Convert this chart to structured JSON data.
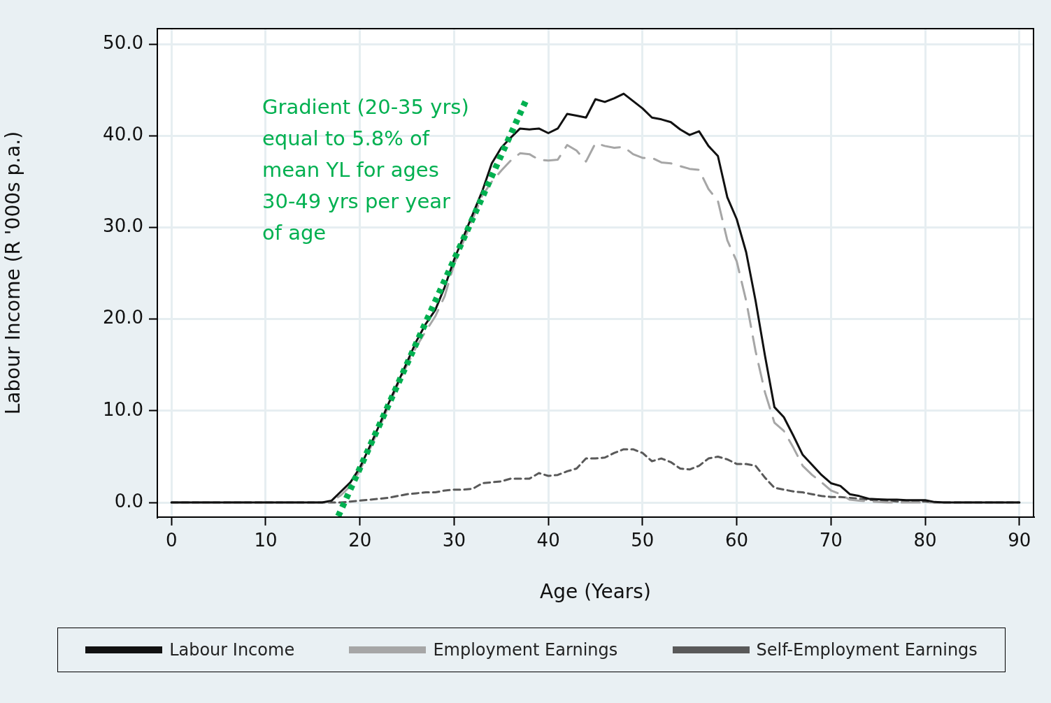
{
  "chart_data": {
    "type": "line",
    "xlabel": "Age (Years)",
    "ylabel": "Labour Income (R '000s p.a.)",
    "x": [
      0,
      1,
      2,
      3,
      4,
      5,
      6,
      7,
      8,
      9,
      10,
      11,
      12,
      13,
      14,
      15,
      16,
      17,
      18,
      19,
      20,
      21,
      22,
      23,
      24,
      25,
      26,
      27,
      28,
      29,
      30,
      31,
      32,
      33,
      34,
      35,
      36,
      37,
      38,
      39,
      40,
      41,
      42,
      43,
      44,
      45,
      46,
      47,
      48,
      49,
      50,
      51,
      52,
      53,
      54,
      55,
      56,
      57,
      58,
      59,
      60,
      61,
      62,
      63,
      64,
      65,
      66,
      67,
      68,
      69,
      70,
      71,
      72,
      73,
      74,
      75,
      76,
      77,
      78,
      79,
      80,
      81,
      82,
      83,
      84,
      85,
      86,
      87,
      88,
      89,
      90
    ],
    "series": [
      {
        "name": "Labour Income",
        "color": "#111111",
        "line_style": "solid",
        "values": [
          0,
          0,
          0,
          0,
          0,
          0,
          0,
          0,
          0,
          0,
          0,
          0,
          0,
          0,
          0,
          0,
          0,
          0.2,
          1.2,
          2.2,
          3.8,
          6,
          8.3,
          10.7,
          13,
          15.3,
          17.6,
          19.5,
          21,
          23.5,
          26.5,
          29,
          31.5,
          34,
          37,
          38.7,
          39.8,
          40.8,
          40.7,
          40.8,
          40.3,
          40.8,
          42.4,
          42.2,
          42,
          44,
          43.7,
          44.1,
          44.6,
          43.8,
          43,
          42,
          41.8,
          41.5,
          40.7,
          40.1,
          40.5,
          38.9,
          37.8,
          33.3,
          30.9,
          27.3,
          22,
          16,
          10.4,
          9.3,
          7.3,
          5.2,
          4.1,
          3,
          2.1,
          1.8,
          0.9,
          0.7,
          0.4,
          0.35,
          0.3,
          0.3,
          0.25,
          0.25,
          0.25,
          0.05,
          0,
          0,
          0,
          0,
          0,
          0,
          0,
          0,
          0
        ]
      },
      {
        "name": "Employment Earnings",
        "color": "#a6a6a6",
        "line_style": "dashed",
        "values": [
          0,
          0,
          0,
          0,
          0,
          0,
          0,
          0,
          0,
          0,
          0,
          0,
          0,
          0,
          0,
          0,
          0,
          0.1,
          0.8,
          1.8,
          3.5,
          5.7,
          8,
          10.4,
          12.8,
          15,
          17,
          18.7,
          20.3,
          22.5,
          26,
          28.5,
          31,
          33.5,
          35,
          36.2,
          37.3,
          38.1,
          38,
          37.4,
          37.3,
          37.4,
          39,
          38.4,
          37.2,
          39.2,
          38.9,
          38.7,
          38.8,
          38,
          37.6,
          37.6,
          37.1,
          37,
          36.7,
          36.4,
          36.3,
          34.2,
          32.9,
          28.6,
          26.3,
          22,
          16.5,
          12,
          8.7,
          7.8,
          6,
          4,
          3,
          2.2,
          1.3,
          0.9,
          0.3,
          0.2,
          0.1,
          0.05,
          0,
          0,
          0,
          0,
          0,
          0,
          0,
          0,
          0,
          0,
          0,
          0,
          0,
          0,
          0
        ]
      },
      {
        "name": "Self-Employment Earnings",
        "color": "#595959",
        "line_style": "dashed",
        "values": [
          0,
          0,
          0,
          0,
          0,
          0,
          0,
          0,
          0,
          0,
          0,
          0,
          0,
          0,
          0,
          0,
          0,
          0,
          0,
          0.1,
          0.2,
          0.3,
          0.4,
          0.5,
          0.7,
          0.9,
          1,
          1.1,
          1.1,
          1.3,
          1.4,
          1.4,
          1.5,
          2.1,
          2.2,
          2.3,
          2.6,
          2.6,
          2.6,
          3.2,
          2.9,
          3,
          3.4,
          3.7,
          4.8,
          4.8,
          4.9,
          5.4,
          5.8,
          5.8,
          5.4,
          4.5,
          4.8,
          4.4,
          3.7,
          3.6,
          4,
          4.8,
          5,
          4.7,
          4.2,
          4.2,
          4,
          2.7,
          1.6,
          1.4,
          1.2,
          1.1,
          0.9,
          0.7,
          0.6,
          0.6,
          0.5,
          0.4,
          0.3,
          0.2,
          0.2,
          0.1,
          0.1,
          0.1,
          0.1,
          0,
          0,
          0,
          0,
          0,
          0,
          0,
          0,
          0,
          0
        ]
      },
      {
        "type": "line",
        "color": "#00b050",
        "line_style": "dotted",
        "x": [
          17.7,
          37.6
        ],
        "values": [
          -1.5,
          43.8
        ]
      }
    ],
    "xlim": [
      -1.5,
      91.5
    ],
    "xticks": [
      0,
      10,
      20,
      30,
      40,
      50,
      60,
      70,
      80,
      90
    ],
    "ylim": [
      -1.6,
      51.7
    ],
    "yticks": [
      {
        "value": 0,
        "label": "0.0"
      },
      {
        "value": 10,
        "label": "10.0"
      },
      {
        "value": 20,
        "label": "20.0"
      },
      {
        "value": 30,
        "label": "30.0"
      },
      {
        "value": 40,
        "label": "40.0"
      },
      {
        "value": 50,
        "label": "50.0"
      }
    ],
    "grid": true,
    "legend": "bottom",
    "marker": "none",
    "annotations": [
      "Gradient (20-35 yrs) equal to 5.8% of mean YL for ages 30-49 yrs per year of age"
    ]
  }
}
